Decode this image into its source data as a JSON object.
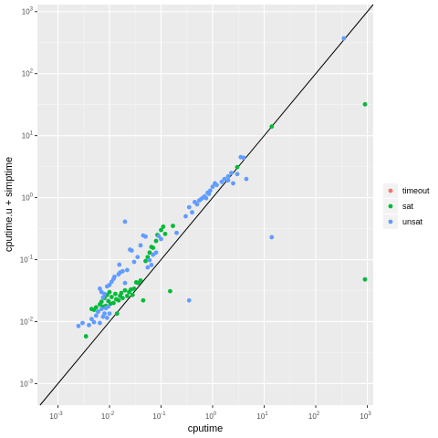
{
  "chart_data": {
    "type": "scatter",
    "title": "",
    "xlabel": "cputime",
    "ylabel": "cputime.u + simptime",
    "x_scale": "log10",
    "y_scale": "log10",
    "xlim": [
      0.0004,
      1300
    ],
    "ylim": [
      0.00045,
      1300
    ],
    "x_ticks": [
      {
        "value": 0.001,
        "base": "10",
        "exp": "-3"
      },
      {
        "value": 0.01,
        "base": "10",
        "exp": "-2"
      },
      {
        "value": 0.1,
        "base": "10",
        "exp": "-1"
      },
      {
        "value": 1,
        "base": "10",
        "exp": "0"
      },
      {
        "value": 10,
        "base": "10",
        "exp": "1"
      },
      {
        "value": 100,
        "base": "10",
        "exp": "2"
      },
      {
        "value": 1000,
        "base": "10",
        "exp": "3"
      }
    ],
    "y_ticks": [
      {
        "value": 0.001,
        "base": "10",
        "exp": "-3"
      },
      {
        "value": 0.01,
        "base": "10",
        "exp": "-2"
      },
      {
        "value": 0.1,
        "base": "10",
        "exp": "-1"
      },
      {
        "value": 1,
        "base": "10",
        "exp": "0"
      },
      {
        "value": 10,
        "base": "10",
        "exp": "1"
      },
      {
        "value": 100,
        "base": "10",
        "exp": "2"
      },
      {
        "value": 1000,
        "base": "10",
        "exp": "3"
      }
    ],
    "reference_line": "y = x",
    "grid": true,
    "legend_position": "right",
    "series": [
      {
        "name": "timeout",
        "color": "#F8766D",
        "points": []
      },
      {
        "name": "sat",
        "color": "#00BA38",
        "points": [
          [
            0.0035,
            0.0058
          ],
          [
            0.0045,
            0.016
          ],
          [
            0.005,
            0.0155
          ],
          [
            0.0055,
            0.017
          ],
          [
            0.006,
            0.0145
          ],
          [
            0.0065,
            0.019
          ],
          [
            0.007,
            0.021
          ],
          [
            0.0075,
            0.0175
          ],
          [
            0.008,
            0.024
          ],
          [
            0.0085,
            0.018
          ],
          [
            0.009,
            0.027
          ],
          [
            0.0095,
            0.0215
          ],
          [
            0.01,
            0.03
          ],
          [
            0.0105,
            0.0195
          ],
          [
            0.011,
            0.025
          ],
          [
            0.012,
            0.02
          ],
          [
            0.013,
            0.028
          ],
          [
            0.0135,
            0.023
          ],
          [
            0.014,
            0.0135
          ],
          [
            0.015,
            0.022
          ],
          [
            0.016,
            0.026
          ],
          [
            0.017,
            0.029
          ],
          [
            0.018,
            0.024
          ],
          [
            0.02,
            0.032
          ],
          [
            0.022,
            0.026
          ],
          [
            0.024,
            0.03
          ],
          [
            0.026,
            0.033
          ],
          [
            0.028,
            0.027
          ],
          [
            0.03,
            0.034
          ],
          [
            0.033,
            0.043
          ],
          [
            0.036,
            0.042
          ],
          [
            0.04,
            0.046
          ],
          [
            0.045,
            0.022
          ],
          [
            0.05,
            0.095
          ],
          [
            0.055,
            0.11
          ],
          [
            0.06,
            0.13
          ],
          [
            0.065,
            0.16
          ],
          [
            0.07,
            0.155
          ],
          [
            0.08,
            0.2
          ],
          [
            0.085,
            0.25
          ],
          [
            0.1,
            0.3
          ],
          [
            0.11,
            0.34
          ],
          [
            0.12,
            0.26
          ],
          [
            0.15,
            0.031
          ],
          [
            0.17,
            0.35
          ],
          [
            3.0,
            3.1
          ],
          [
            14,
            14
          ],
          [
            900,
            32
          ],
          [
            900,
            0.048
          ]
        ]
      },
      {
        "name": "unsat",
        "color": "#619CFF",
        "points": [
          [
            0.0025,
            0.0085
          ],
          [
            0.003,
            0.0095
          ],
          [
            0.004,
            0.0088
          ],
          [
            0.0045,
            0.011
          ],
          [
            0.005,
            0.0098
          ],
          [
            0.0055,
            0.0125
          ],
          [
            0.006,
            0.0145
          ],
          [
            0.0065,
            0.0095
          ],
          [
            0.007,
            0.016
          ],
          [
            0.0075,
            0.012
          ],
          [
            0.008,
            0.0135
          ],
          [
            0.0085,
            0.0165
          ],
          [
            0.009,
            0.0115
          ],
          [
            0.0095,
            0.0175
          ],
          [
            0.01,
            0.0135
          ],
          [
            0.0065,
            0.034
          ],
          [
            0.007,
            0.03
          ],
          [
            0.0075,
            0.0245
          ],
          [
            0.008,
            0.028
          ],
          [
            0.009,
            0.037
          ],
          [
            0.01,
            0.039
          ],
          [
            0.011,
            0.044
          ],
          [
            0.012,
            0.049
          ],
          [
            0.0125,
            0.053
          ],
          [
            0.015,
            0.058
          ],
          [
            0.016,
            0.062
          ],
          [
            0.0155,
            0.083
          ],
          [
            0.018,
            0.065
          ],
          [
            0.02,
            0.042
          ],
          [
            0.022,
            0.068
          ],
          [
            0.025,
            0.145
          ],
          [
            0.03,
            0.092
          ],
          [
            0.035,
            0.11
          ],
          [
            0.04,
            0.17
          ],
          [
            0.045,
            0.245
          ],
          [
            0.05,
            0.235
          ],
          [
            0.055,
            0.075
          ],
          [
            0.06,
            0.098
          ],
          [
            0.065,
            0.082
          ],
          [
            0.07,
            0.12
          ],
          [
            0.08,
            0.13
          ],
          [
            0.02,
            0.41
          ],
          [
            0.027,
            0.14
          ],
          [
            0.09,
            0.24
          ],
          [
            0.1,
            0.215
          ],
          [
            0.2,
            0.27
          ],
          [
            0.3,
            0.5
          ],
          [
            0.35,
            0.7
          ],
          [
            0.4,
            0.58
          ],
          [
            0.45,
            0.85
          ],
          [
            0.5,
            0.78
          ],
          [
            0.55,
            0.9
          ],
          [
            0.6,
            0.95
          ],
          [
            0.65,
            1.0
          ],
          [
            0.7,
            1.05
          ],
          [
            0.75,
            0.98
          ],
          [
            0.8,
            1.2
          ],
          [
            0.85,
            1.15
          ],
          [
            0.9,
            1.3
          ],
          [
            1.0,
            1.5
          ],
          [
            1.2,
            1.6
          ],
          [
            1.5,
            1.8
          ],
          [
            1.7,
            2.0
          ],
          [
            2.0,
            2.2
          ],
          [
            2.3,
            2.5
          ],
          [
            3.0,
            2.4
          ],
          [
            3.5,
            4.5
          ],
          [
            4.0,
            4.4
          ],
          [
            2.0,
            1.9
          ],
          [
            2.5,
            1.7
          ],
          [
            4.5,
            2.0
          ],
          [
            1.1,
            1.7
          ],
          [
            0.35,
            0.022
          ],
          [
            14,
            0.23
          ],
          [
            350,
            370
          ]
        ]
      }
    ]
  }
}
